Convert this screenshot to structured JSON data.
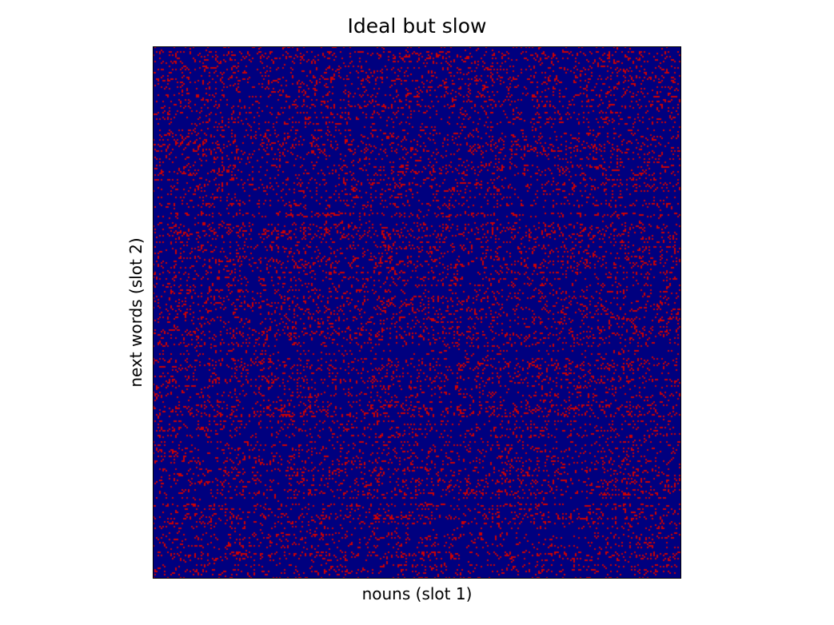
{
  "chart_data": {
    "type": "heatmap",
    "title": "Ideal but slow",
    "xlabel": "nouns (slot 1)",
    "ylabel": "next words (slot 2)",
    "xticks": [],
    "yticks": [],
    "legend": "none",
    "grid": false,
    "colormap": "jet",
    "value_range": [
      0,
      1
    ],
    "colors": {
      "low": "#00007f",
      "high": "#d00000"
    },
    "matrix_description": {
      "binary": true,
      "mostly_low": true,
      "approx_fraction_high": 0.12
    }
  }
}
